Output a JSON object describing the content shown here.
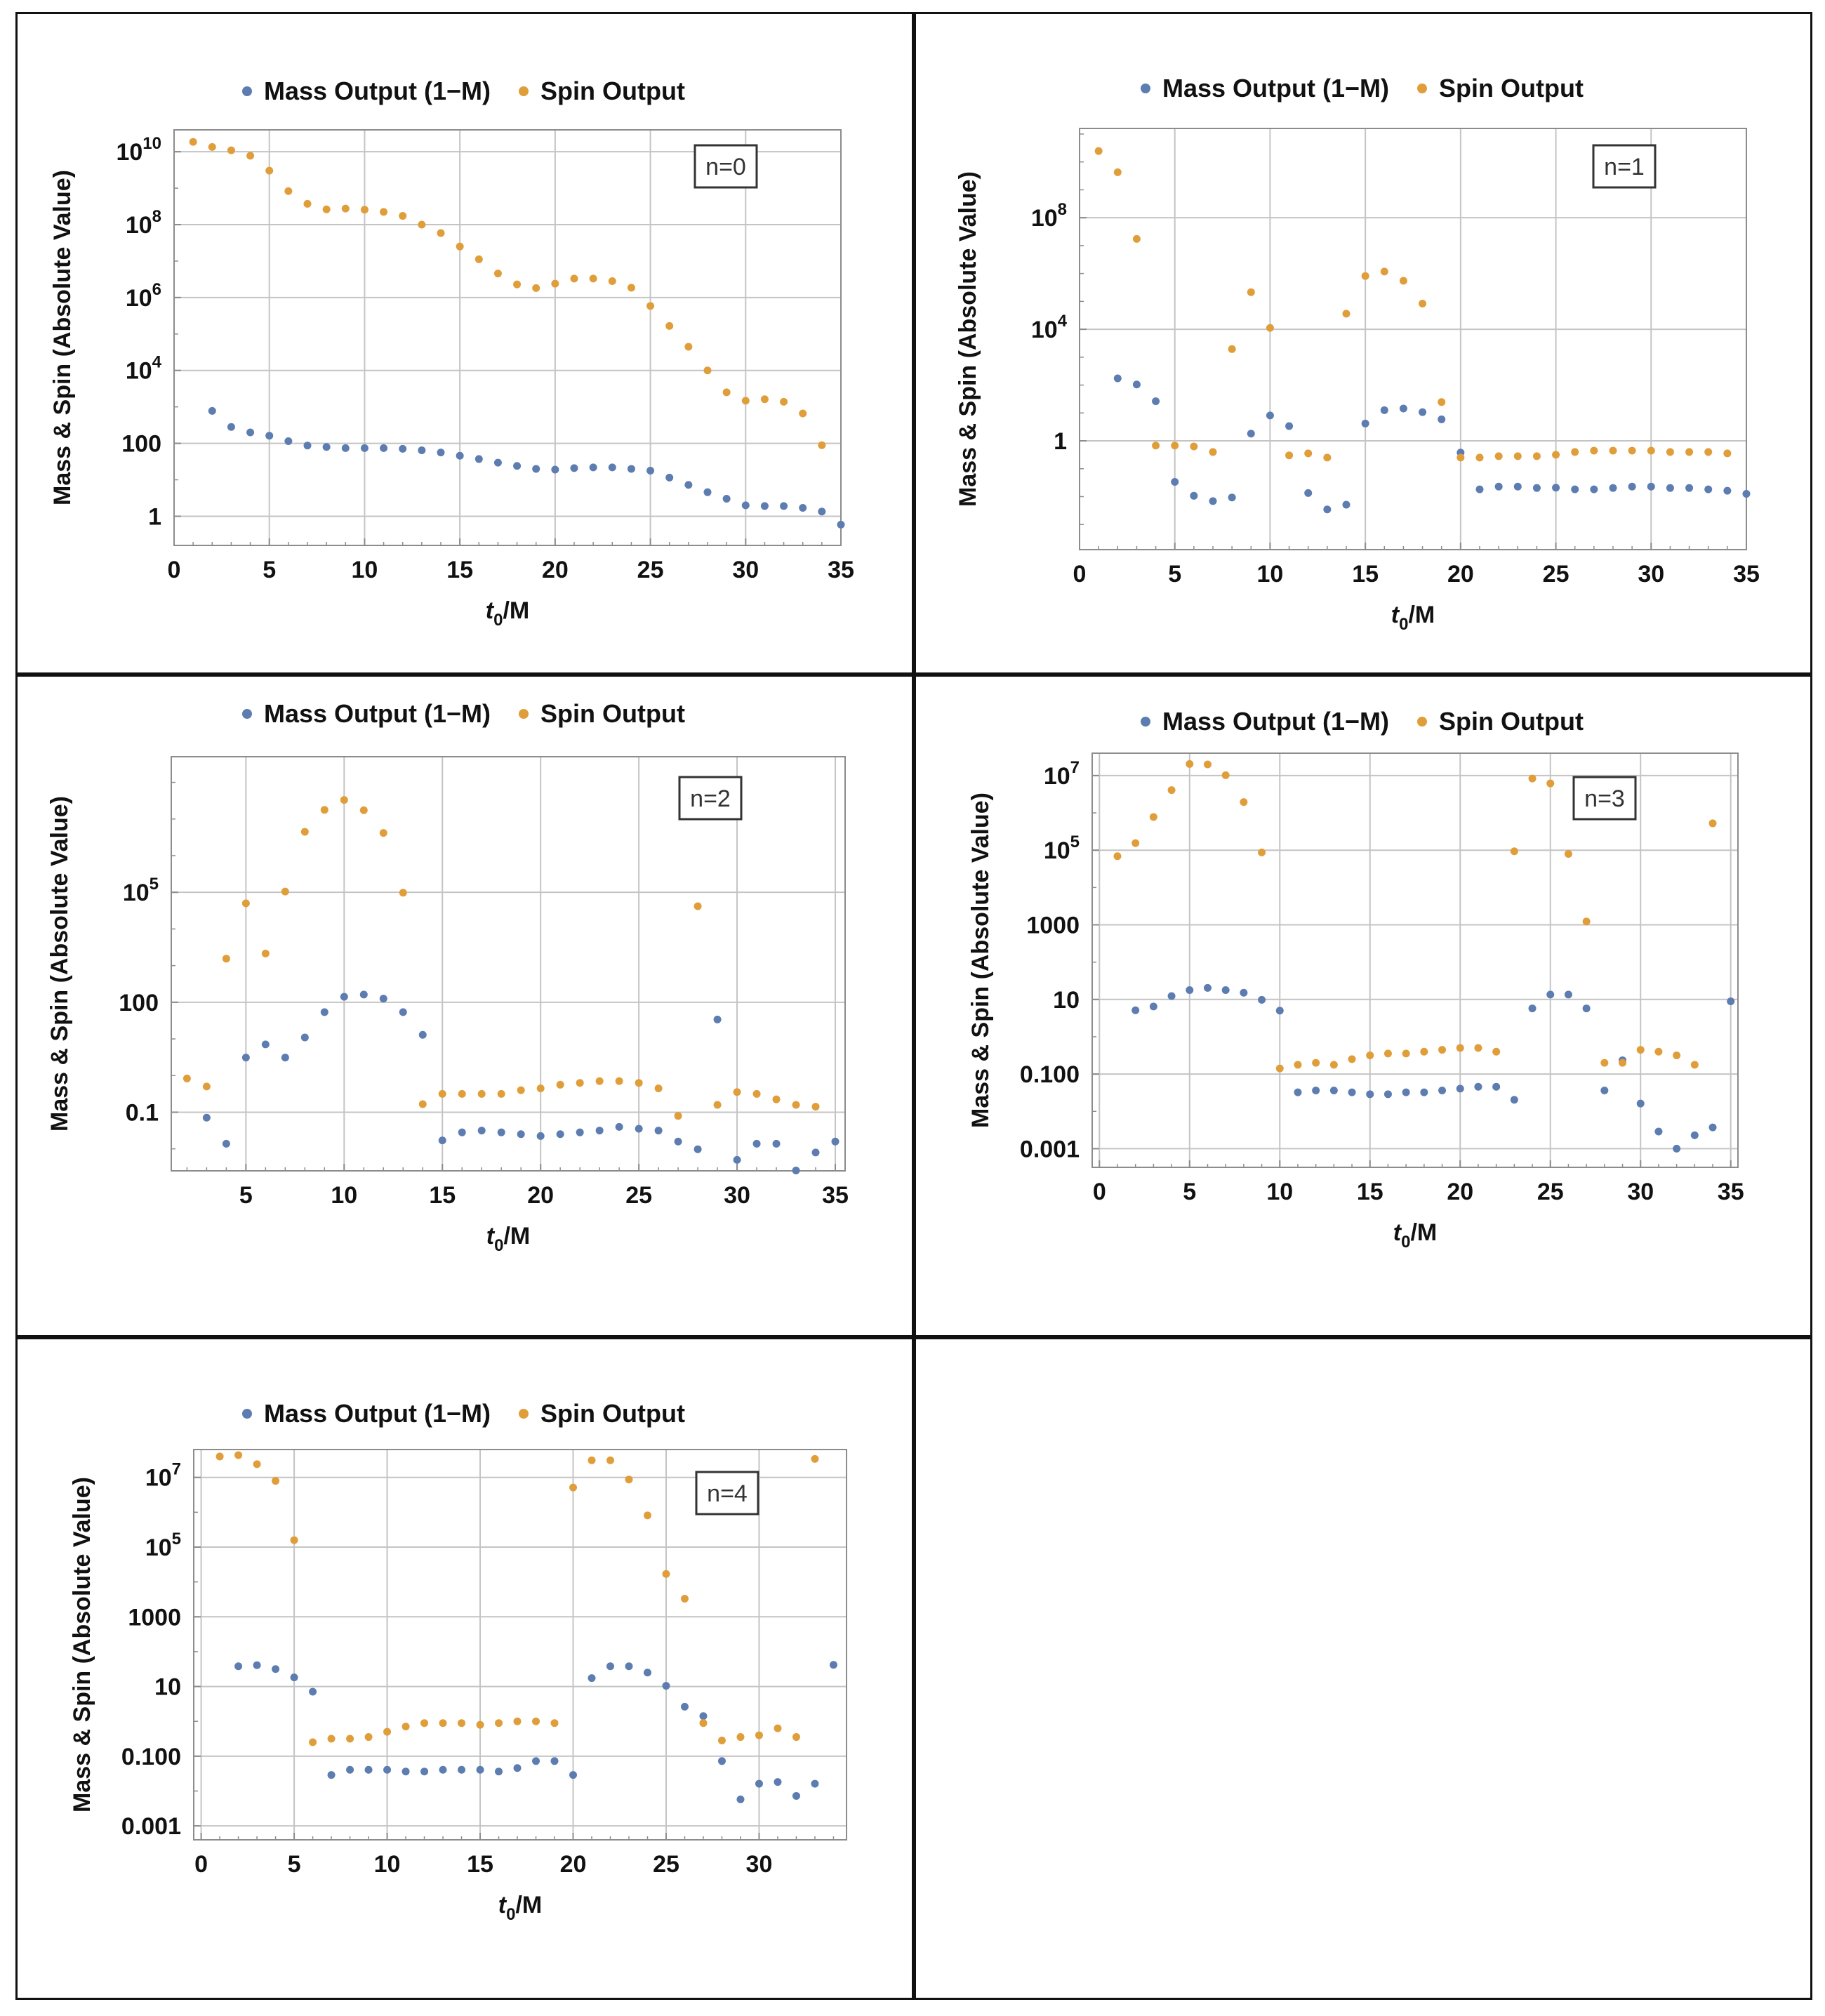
{
  "colors": {
    "mass": "#5d7cb0",
    "spin": "#e09e3a",
    "grid": "#c4c4c4",
    "frame": "#8c8c8c",
    "border": "#111111"
  },
  "chart_data": [
    {
      "type": "scatter",
      "panel": "n0",
      "annotation": "n=0",
      "xlabel": "t0/M",
      "ylabel": "Mass & Spin (Absolute Value)",
      "xlim": [
        0,
        35
      ],
      "xticks": [
        0,
        5,
        10,
        15,
        20,
        25,
        30,
        35
      ],
      "y_scale": "log",
      "ylog_range": [
        -0.8,
        10.6
      ],
      "yticks": [
        {
          "log": 0,
          "base": "1",
          "sup": ""
        },
        {
          "log": 2,
          "base": "100",
          "sup": ""
        },
        {
          "log": 4,
          "base": "10",
          "sup": "4"
        },
        {
          "log": 6,
          "base": "10",
          "sup": "6"
        },
        {
          "log": 8,
          "base": "10",
          "sup": "8"
        },
        {
          "log": 10,
          "base": "10",
          "sup": "10"
        }
      ],
      "legend": [
        "Mass Output (1−M)",
        "Spin Output"
      ],
      "series": [
        {
          "name": "Mass Output (1−M)",
          "x": [
            2,
            3,
            4,
            5,
            6,
            7,
            8,
            9,
            10,
            11,
            12,
            13,
            14,
            15,
            16,
            17,
            18,
            19,
            20,
            21,
            22,
            23,
            24,
            25,
            26,
            27,
            28,
            29,
            30,
            31,
            32,
            33,
            34,
            35
          ],
          "y": [
            2.89,
            2.45,
            2.3,
            2.21,
            2.06,
            1.94,
            1.9,
            1.87,
            1.87,
            1.87,
            1.85,
            1.81,
            1.75,
            1.66,
            1.57,
            1.47,
            1.38,
            1.3,
            1.28,
            1.32,
            1.34,
            1.34,
            1.3,
            1.25,
            1.06,
            0.86,
            0.66,
            0.48,
            0.3,
            0.28,
            0.28,
            0.23,
            0.13,
            -0.23
          ]
        },
        {
          "name": "Spin Output",
          "x": [
            1,
            2,
            3,
            4,
            5,
            6,
            7,
            8,
            9,
            10,
            11,
            12,
            13,
            14,
            15,
            16,
            17,
            18,
            19,
            20,
            21,
            22,
            23,
            24,
            25,
            26,
            27,
            28,
            29,
            30,
            31,
            32,
            33,
            34
          ],
          "y": [
            10.27,
            10.13,
            10.04,
            9.89,
            9.48,
            8.92,
            8.57,
            8.42,
            8.44,
            8.41,
            8.35,
            8.24,
            8.0,
            7.77,
            7.4,
            7.05,
            6.66,
            6.36,
            6.26,
            6.38,
            6.52,
            6.52,
            6.45,
            6.27,
            5.77,
            5.22,
            4.65,
            4.0,
            3.4,
            3.17,
            3.21,
            3.14,
            2.82,
            1.95
          ]
        }
      ]
    },
    {
      "type": "scatter",
      "panel": "n1",
      "annotation": "n=1",
      "xlabel": "t0/M",
      "ylabel": "Mass & Spin (Absolute Value)",
      "xlim": [
        0,
        35
      ],
      "xticks": [
        0,
        5,
        10,
        15,
        20,
        25,
        30,
        35
      ],
      "y_scale": "log",
      "ylog_range": [
        -3.9,
        11.2
      ],
      "yticks": [
        {
          "log": 0,
          "base": "1",
          "sup": ""
        },
        {
          "log": 4,
          "base": "10",
          "sup": "4"
        },
        {
          "log": 8,
          "base": "10",
          "sup": "8"
        }
      ],
      "legend": [
        "Mass Output (1−M)",
        "Spin Output"
      ],
      "series": [
        {
          "name": "Mass Output (1−M)",
          "x": [
            2,
            3,
            4,
            5,
            6,
            7,
            8,
            9,
            10,
            11,
            12,
            13,
            14,
            15,
            16,
            17,
            18,
            19,
            20,
            21,
            22,
            23,
            24,
            25,
            26,
            27,
            28,
            29,
            30,
            31,
            32,
            33,
            34,
            35
          ],
          "y": [
            2.24,
            2.02,
            1.42,
            -1.47,
            -1.97,
            -2.16,
            -2.03,
            0.26,
            0.91,
            0.53,
            -1.87,
            -2.46,
            -2.29,
            0.62,
            1.1,
            1.16,
            1.03,
            0.77,
            -0.42,
            -1.74,
            -1.64,
            -1.64,
            -1.69,
            -1.68,
            -1.74,
            -1.74,
            -1.69,
            -1.64,
            -1.64,
            -1.69,
            -1.69,
            -1.74,
            -1.79,
            -1.9
          ]
        },
        {
          "name": "Spin Output",
          "x": [
            1,
            2,
            3,
            4,
            5,
            6,
            7,
            8,
            9,
            10,
            11,
            12,
            13,
            14,
            15,
            16,
            17,
            18,
            19,
            20,
            21,
            22,
            23,
            24,
            25,
            26,
            27,
            28,
            29,
            30,
            31,
            32,
            33,
            34
          ],
          "y": [
            10.39,
            9.63,
            7.24,
            -0.17,
            -0.17,
            -0.2,
            -0.4,
            3.29,
            5.33,
            4.05,
            -0.52,
            -0.45,
            -0.6,
            4.56,
            5.91,
            6.07,
            5.74,
            4.92,
            1.39,
            -0.6,
            -0.6,
            -0.55,
            -0.55,
            -0.55,
            -0.5,
            -0.4,
            -0.35,
            -0.35,
            -0.35,
            -0.35,
            -0.4,
            -0.4,
            -0.4,
            -0.45
          ]
        }
      ]
    },
    {
      "type": "scatter",
      "panel": "n2",
      "annotation": "n=2",
      "xlabel": "t0/M",
      "ylabel": "Mass & Spin (Absolute Value)",
      "xlim": [
        1.2,
        35.5
      ],
      "xticks": [
        5,
        10,
        15,
        20,
        25,
        30,
        35
      ],
      "y_scale": "log",
      "ylog_range": [
        -2.6,
        8.7
      ],
      "yticks": [
        {
          "log": -1,
          "base": "0.1",
          "sup": ""
        },
        {
          "log": 2,
          "base": "100",
          "sup": ""
        },
        {
          "log": 5,
          "base": "10",
          "sup": "5"
        }
      ],
      "legend": [
        "Mass Output (1−M)",
        "Spin Output"
      ],
      "series": [
        {
          "name": "Mass Output (1−M)",
          "x": [
            3,
            4,
            5,
            6,
            7,
            8,
            9,
            10,
            11,
            12,
            13,
            14,
            15,
            16,
            17,
            18,
            19,
            20,
            21,
            22,
            23,
            24,
            25,
            26,
            27,
            28,
            29,
            30,
            31,
            32,
            33,
            34,
            35
          ],
          "y": [
            -1.15,
            -1.86,
            0.49,
            0.85,
            0.49,
            1.04,
            1.73,
            2.15,
            2.21,
            2.1,
            1.73,
            1.11,
            -1.77,
            -1.55,
            -1.5,
            -1.55,
            -1.6,
            -1.65,
            -1.6,
            -1.55,
            -1.5,
            -1.4,
            -1.45,
            -1.5,
            -1.8,
            -2.01,
            1.53,
            -2.3,
            -1.86,
            -1.86,
            -2.59,
            -2.1,
            -1.8
          ]
        },
        {
          "name": "Spin Output",
          "x": [
            2,
            3,
            4,
            5,
            6,
            7,
            8,
            9,
            10,
            11,
            12,
            13,
            14,
            15,
            16,
            17,
            18,
            19,
            20,
            21,
            22,
            23,
            24,
            25,
            26,
            27,
            28,
            29,
            30,
            31,
            32,
            33,
            34
          ],
          "y": [
            -0.08,
            -0.3,
            3.19,
            4.7,
            3.33,
            5.02,
            6.65,
            7.25,
            7.52,
            7.24,
            6.62,
            4.99,
            -0.78,
            -0.5,
            -0.5,
            -0.5,
            -0.5,
            -0.4,
            -0.35,
            -0.25,
            -0.2,
            -0.15,
            -0.15,
            -0.2,
            -0.35,
            -1.1,
            4.62,
            -0.8,
            -0.45,
            -0.5,
            -0.65,
            -0.8,
            -0.85
          ]
        }
      ]
    },
    {
      "type": "scatter",
      "panel": "n3",
      "annotation": "n=3",
      "xlabel": "t0/M",
      "ylabel": "Mass & Spin (Absolute Value)",
      "xlim": [
        -0.4,
        35.4
      ],
      "xticks": [
        0,
        5,
        10,
        15,
        20,
        25,
        30,
        35
      ],
      "y_scale": "log",
      "ylog_range": [
        -3.5,
        7.6
      ],
      "yticks": [
        {
          "log": -3,
          "base": "0.001",
          "sup": ""
        },
        {
          "log": -1,
          "base": "0.100",
          "sup": ""
        },
        {
          "log": 1,
          "base": "10",
          "sup": ""
        },
        {
          "log": 3,
          "base": "1000",
          "sup": ""
        },
        {
          "log": 5,
          "base": "10",
          "sup": "5"
        },
        {
          "log": 7,
          "base": "10",
          "sup": "7"
        }
      ],
      "legend": [
        "Mass Output (1−M)",
        "Spin Output"
      ],
      "series": [
        {
          "name": "Mass Output (1−M)",
          "x": [
            2,
            3,
            4,
            5,
            6,
            7,
            8,
            9,
            10,
            11,
            12,
            13,
            14,
            15,
            16,
            17,
            18,
            19,
            20,
            21,
            22,
            23,
            24,
            25,
            26,
            27,
            28,
            29,
            30,
            31,
            32,
            33,
            34,
            35
          ],
          "y": [
            0.71,
            0.81,
            1.09,
            1.25,
            1.31,
            1.25,
            1.18,
            0.99,
            0.7,
            -1.49,
            -1.44,
            -1.44,
            -1.49,
            -1.54,
            -1.54,
            -1.49,
            -1.49,
            -1.44,
            -1.39,
            -1.34,
            -1.34,
            -1.69,
            0.76,
            1.13,
            1.13,
            0.76,
            -1.44,
            -0.63,
            -1.79,
            -2.54,
            -3.0,
            -2.64,
            -2.43,
            0.95
          ]
        },
        {
          "name": "Spin Output",
          "x": [
            1,
            2,
            3,
            4,
            5,
            6,
            7,
            8,
            9,
            10,
            11,
            12,
            13,
            14,
            15,
            16,
            17,
            18,
            19,
            20,
            21,
            22,
            23,
            24,
            25,
            26,
            27,
            28,
            29,
            30,
            31,
            32,
            33,
            34
          ],
          "y": [
            4.84,
            5.19,
            5.89,
            6.61,
            7.31,
            7.3,
            7.01,
            6.29,
            4.94,
            -0.85,
            -0.75,
            -0.7,
            -0.75,
            -0.6,
            -0.5,
            -0.45,
            -0.45,
            -0.4,
            -0.35,
            -0.3,
            -0.3,
            -0.4,
            4.97,
            6.92,
            6.79,
            4.9,
            3.09,
            -0.7,
            -0.7,
            -0.35,
            -0.4,
            -0.5,
            -0.75,
            5.72
          ]
        }
      ]
    },
    {
      "type": "scatter",
      "panel": "n4",
      "annotation": "n=4",
      "xlabel": "t0/M",
      "ylabel": "Mass & Spin (Absolute Value)",
      "xlim": [
        -0.4,
        34.7
      ],
      "xticks": [
        0,
        5,
        10,
        15,
        20,
        25,
        30
      ],
      "y_scale": "log",
      "ylog_range": [
        -3.4,
        7.8
      ],
      "yticks": [
        {
          "log": -3,
          "base": "0.001",
          "sup": ""
        },
        {
          "log": -1,
          "base": "0.100",
          "sup": ""
        },
        {
          "log": 1,
          "base": "10",
          "sup": ""
        },
        {
          "log": 3,
          "base": "1000",
          "sup": ""
        },
        {
          "log": 5,
          "base": "10",
          "sup": "5"
        },
        {
          "log": 7,
          "base": "10",
          "sup": "7"
        }
      ],
      "legend": [
        "Mass Output (1−M)",
        "Spin Output"
      ],
      "series": [
        {
          "name": "Mass Output (1−M)",
          "x": [
            2,
            3,
            4,
            5,
            6,
            7,
            8,
            9,
            10,
            11,
            12,
            13,
            14,
            15,
            16,
            17,
            18,
            19,
            20,
            21,
            22,
            23,
            24,
            25,
            26,
            27,
            28,
            29,
            30,
            31,
            32,
            33,
            34
          ],
          "y": [
            1.58,
            1.61,
            1.5,
            1.26,
            0.85,
            -1.54,
            -1.39,
            -1.39,
            -1.39,
            -1.44,
            -1.44,
            -1.39,
            -1.39,
            -1.39,
            -1.44,
            -1.34,
            -1.14,
            -1.14,
            -1.54,
            1.24,
            1.58,
            1.58,
            1.4,
            1.02,
            0.42,
            0.15,
            -1.14,
            -2.24,
            -1.79,
            -1.74,
            -2.14,
            -1.79,
            1.62
          ]
        },
        {
          "name": "Spin Output",
          "x": [
            1,
            2,
            3,
            4,
            5,
            6,
            7,
            8,
            9,
            10,
            11,
            12,
            13,
            14,
            15,
            16,
            17,
            18,
            19,
            20,
            21,
            22,
            23,
            24,
            25,
            26,
            27,
            28,
            29,
            30,
            31,
            32,
            33
          ],
          "y": [
            7.6,
            7.64,
            7.38,
            6.9,
            5.2,
            -0.6,
            -0.5,
            -0.5,
            -0.45,
            -0.3,
            -0.15,
            -0.05,
            -0.05,
            -0.05,
            -0.1,
            -0.05,
            0.0,
            0.0,
            -0.05,
            6.71,
            7.49,
            7.49,
            6.94,
            5.91,
            4.23,
            3.52,
            -0.05,
            -0.55,
            -0.45,
            -0.4,
            -0.2,
            -0.45,
            7.53
          ]
        }
      ]
    }
  ]
}
